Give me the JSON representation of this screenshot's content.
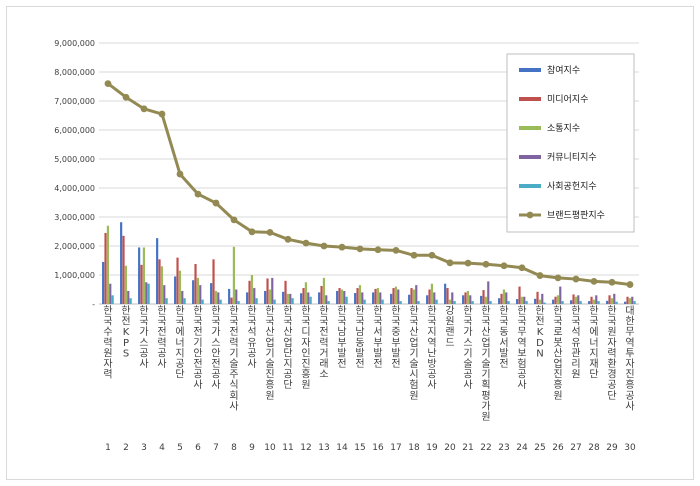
{
  "chart_data": {
    "type": "bar",
    "ylim": [
      0,
      9000000
    ],
    "yticks": [
      0,
      1000000,
      2000000,
      3000000,
      4000000,
      5000000,
      6000000,
      7000000,
      8000000,
      9000000
    ],
    "ytick_labels": [
      "-",
      "1,000,000",
      "2,000,000",
      "3,000,000",
      "4,000,000",
      "5,000,000",
      "6,000,000",
      "7,000,000",
      "8,000,000",
      "9,000,000"
    ],
    "grid": true,
    "legend_position": "top-right",
    "categories": [
      "한국수력원자력",
      "한전KPS",
      "한국가스공사",
      "한국전력공사",
      "한국에너지공단",
      "한국전기안전공사",
      "한국가스안전공사",
      "한국전력기술주식회사",
      "한국석유공사",
      "한국산업기술진흥원",
      "한국산업단지공단",
      "한국디자인진흥원",
      "한국전력거래소",
      "한국남부발전",
      "한국남동발전",
      "한국서부발전",
      "한국중부발전",
      "한국산업기술시험원",
      "한국지역난방공사",
      "강원랜드",
      "한국가스기술공사",
      "한국산업기술기획평가원",
      "한국동서발전",
      "한국무역보험공사",
      "한전KDN",
      "한국로봇산업진흥원",
      "한국석유관리원",
      "한국에너지재단",
      "한국원자력환경공단",
      "대한무역투자진흥공사"
    ],
    "index_labels": [
      "1",
      "2",
      "3",
      "4",
      "5",
      "6",
      "7",
      "8",
      "9",
      "10",
      "11",
      "12",
      "13",
      "14",
      "15",
      "16",
      "17",
      "18",
      "19",
      "20",
      "21",
      "22",
      "23",
      "24",
      "25",
      "26",
      "27",
      "28",
      "29",
      "30"
    ],
    "series": [
      {
        "name": "참여지수",
        "type": "bar",
        "color": "#4472c4",
        "values": [
          1450000,
          2820000,
          1950000,
          2270000,
          950000,
          820000,
          720000,
          520000,
          400000,
          450000,
          420000,
          370000,
          400000,
          450000,
          380000,
          400000,
          350000,
          320000,
          300000,
          700000,
          300000,
          280000,
          200000,
          170000,
          180000,
          150000,
          130000,
          100000,
          110000,
          80000
        ]
      },
      {
        "name": "미디어지수",
        "type": "bar",
        "color": "#c0504d",
        "values": [
          2450000,
          2350000,
          1350000,
          1540000,
          1600000,
          1380000,
          1540000,
          220000,
          800000,
          880000,
          800000,
          550000,
          620000,
          550000,
          550000,
          520000,
          550000,
          550000,
          500000,
          550000,
          400000,
          480000,
          350000,
          600000,
          420000,
          250000,
          330000,
          250000,
          300000,
          250000
        ]
      },
      {
        "name": "소통지수",
        "type": "bar",
        "color": "#9bbb59",
        "values": [
          2700000,
          1320000,
          1950000,
          1300000,
          1150000,
          900000,
          450000,
          1970000,
          1000000,
          500000,
          350000,
          750000,
          900000,
          500000,
          650000,
          550000,
          600000,
          500000,
          700000,
          150000,
          450000,
          250000,
          500000,
          250000,
          150000,
          300000,
          250000,
          150000,
          200000,
          200000
        ]
      },
      {
        "name": "커뮤니티지수",
        "type": "bar",
        "color": "#8064a2",
        "values": [
          700000,
          450000,
          750000,
          650000,
          450000,
          650000,
          400000,
          500000,
          550000,
          900000,
          350000,
          400000,
          300000,
          450000,
          400000,
          400000,
          500000,
          650000,
          400000,
          400000,
          300000,
          780000,
          400000,
          250000,
          350000,
          600000,
          300000,
          300000,
          350000,
          250000
        ]
      },
      {
        "name": "사회공헌지수",
        "type": "bar",
        "color": "#4bacc6",
        "values": [
          300000,
          200000,
          700000,
          200000,
          200000,
          150000,
          150000,
          100000,
          200000,
          150000,
          200000,
          250000,
          100000,
          250000,
          150000,
          150000,
          100000,
          100000,
          150000,
          100000,
          100000,
          100000,
          100000,
          100000,
          50000,
          100000,
          100000,
          100000,
          80000,
          100000
        ]
      },
      {
        "name": "브랜드평판지수",
        "type": "line",
        "color": "#938953",
        "values": [
          7600000,
          7130000,
          6730000,
          6550000,
          4480000,
          3790000,
          3480000,
          2900000,
          2490000,
          2470000,
          2230000,
          2100000,
          2000000,
          1960000,
          1900000,
          1870000,
          1850000,
          1680000,
          1680000,
          1420000,
          1410000,
          1370000,
          1320000,
          1250000,
          980000,
          900000,
          860000,
          780000,
          750000,
          670000
        ]
      }
    ]
  }
}
